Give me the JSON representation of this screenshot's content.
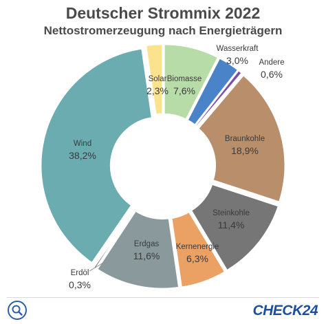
{
  "chart_data": {
    "type": "pie",
    "title": "Deutscher Strommix 2022",
    "subtitle": "Nettostromerzeugung nach Energieträgern",
    "slices": [
      {
        "name": "Biomasse",
        "value": 7.6,
        "label": "7,6%",
        "color": "#b7dca8"
      },
      {
        "name": "Wasserkraft",
        "value": 3.0,
        "label": "3,0%",
        "color": "#4a83c8"
      },
      {
        "name": "Andere",
        "value": 0.6,
        "label": "0,6%",
        "color": "#7b4fa6"
      },
      {
        "name": "Braunkohle",
        "value": 18.9,
        "label": "18,9%",
        "color": "#b98e6a"
      },
      {
        "name": "Steinkohle",
        "value": 11.4,
        "label": "11,4%",
        "color": "#767676"
      },
      {
        "name": "Kernenergie",
        "value": 6.3,
        "label": "6,3%",
        "color": "#eca164"
      },
      {
        "name": "Erdgas",
        "value": 11.6,
        "label": "11,6%",
        "color": "#8a9a9c"
      },
      {
        "name": "Erdöl",
        "value": 0.3,
        "label": "0,3%",
        "color": "#2a2a2a"
      },
      {
        "name": "Wind",
        "value": 38.2,
        "label": "38,2%",
        "color": "#6aacb0"
      },
      {
        "name": "Solar",
        "value": 2.3,
        "label": "2,3%",
        "color": "#fbe38e"
      }
    ]
  },
  "footer": {
    "search_icon": "search-icon",
    "logo_text": "CHECK",
    "logo_num": "24"
  }
}
